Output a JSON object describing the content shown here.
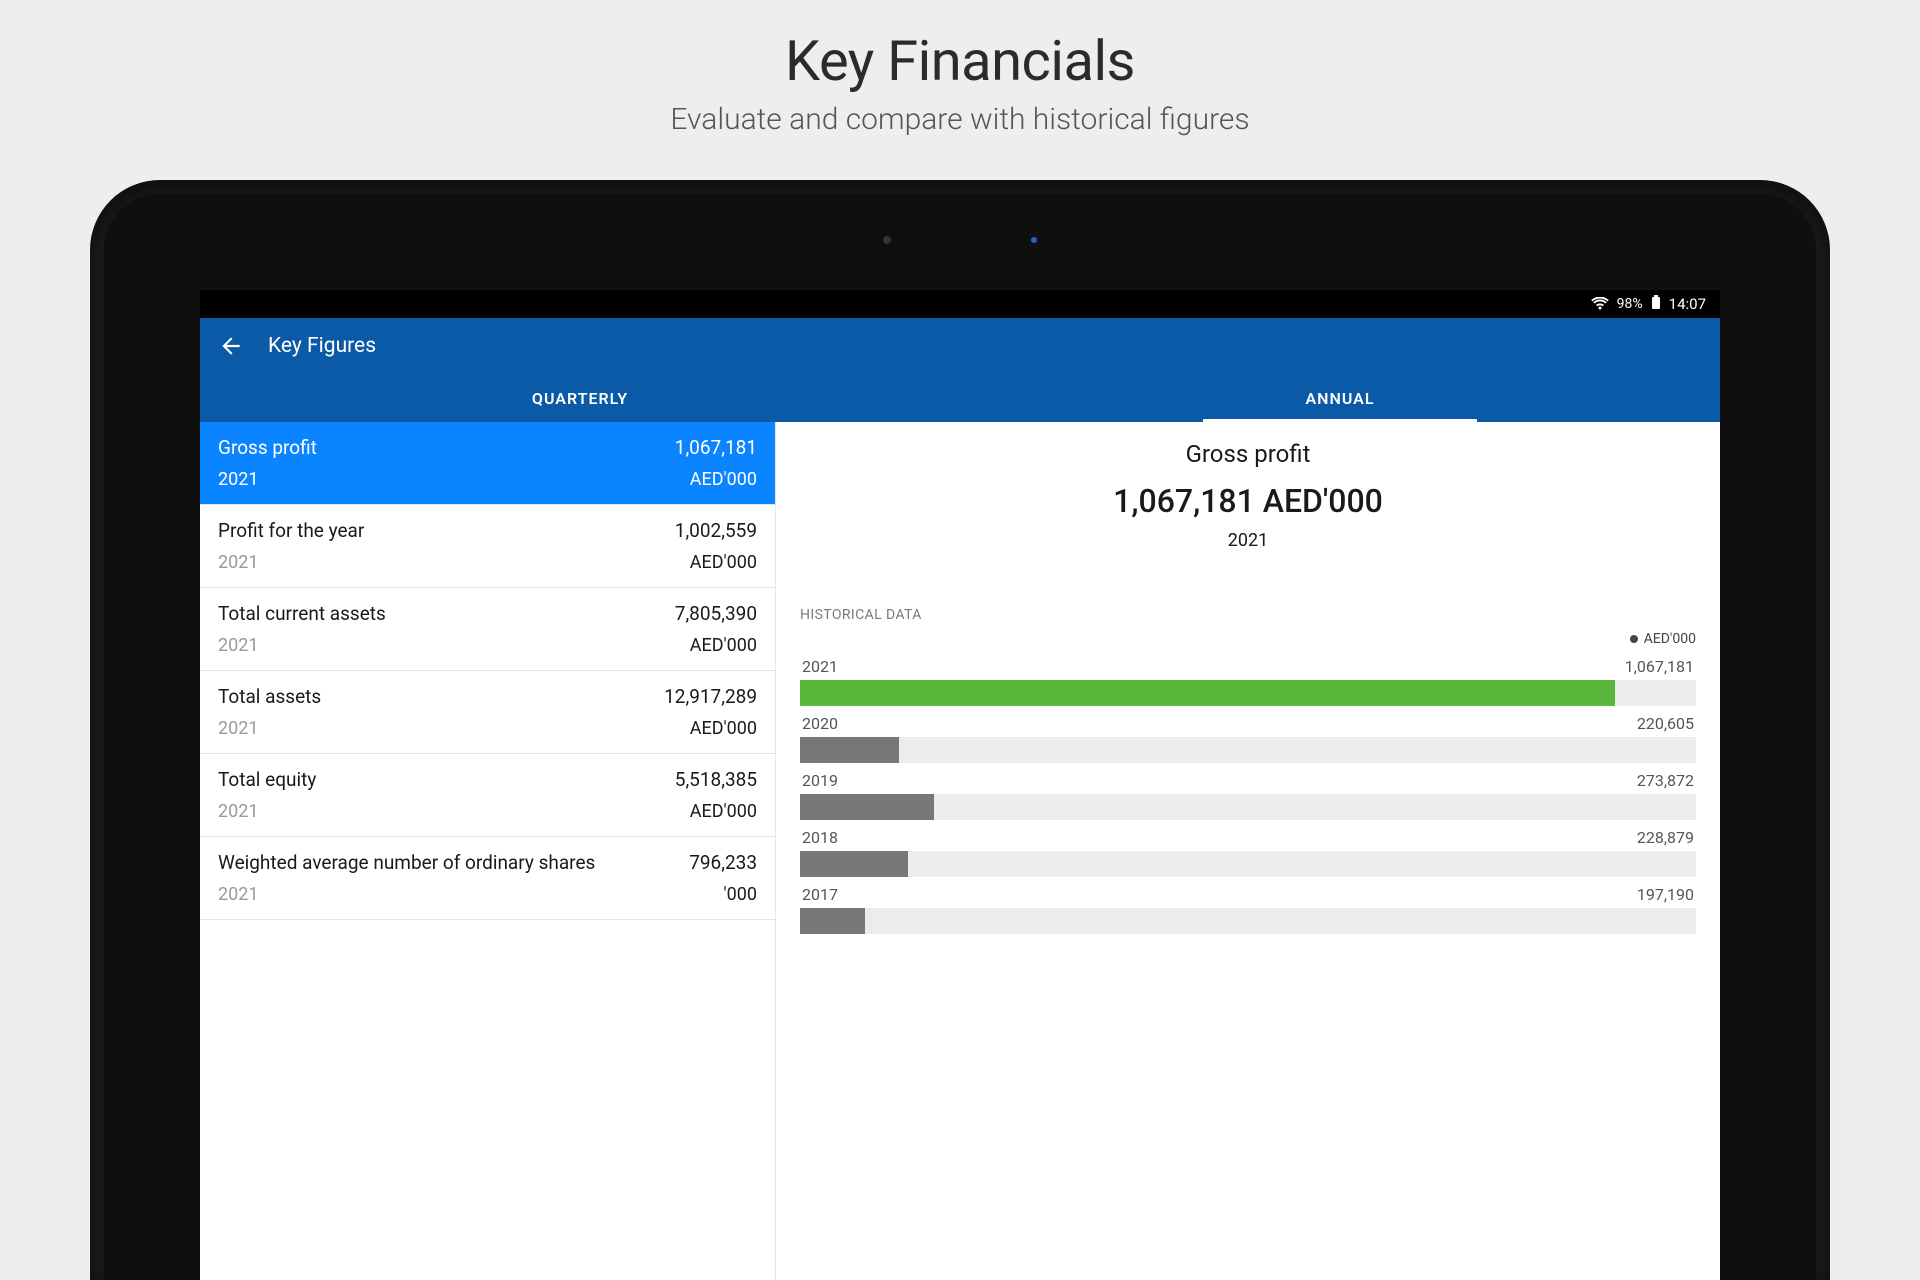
{
  "header": {
    "title": "Key Financials",
    "subtitle": "Evaluate and compare with historical figures"
  },
  "status_bar": {
    "battery_pct": "98%",
    "time": "14:07"
  },
  "app_bar": {
    "title": "Key Figures"
  },
  "tabs": {
    "quarterly": "QUARTERLY",
    "annual": "ANNUAL",
    "active": "annual"
  },
  "figures": [
    {
      "name": "Gross profit",
      "value": "1,067,181",
      "year": "2021",
      "unit": "AED'000",
      "selected": true
    },
    {
      "name": "Profit for the year",
      "value": "1,002,559",
      "year": "2021",
      "unit": "AED'000"
    },
    {
      "name": "Total current assets",
      "value": "7,805,390",
      "year": "2021",
      "unit": "AED'000"
    },
    {
      "name": "Total assets",
      "value": "12,917,289",
      "year": "2021",
      "unit": "AED'000"
    },
    {
      "name": "Total equity",
      "value": "5,518,385",
      "year": "2021",
      "unit": "AED'000"
    },
    {
      "name": "Weighted average number of ordinary shares",
      "value": "796,233",
      "year": "2021",
      "unit": "'000"
    }
  ],
  "detail": {
    "title": "Gross profit",
    "value": "1,067,181 AED'000",
    "year": "2021",
    "historical_label": "HISTORICAL DATA",
    "legend_unit": "AED'000",
    "chart": {
      "type": "bar",
      "track_color": "#ececec",
      "highlight_color": "#5bb73b",
      "bar_color": "#777777",
      "label_color": "#555555",
      "label_fontsize": 16,
      "max_value": 1067181,
      "bars": [
        {
          "year": "2021",
          "value": 1067181,
          "label": "1,067,181",
          "pct": 91,
          "highlight": true
        },
        {
          "year": "2020",
          "value": 220605,
          "label": "220,605",
          "pct": 11.0,
          "highlight": false
        },
        {
          "year": "2019",
          "value": 273872,
          "label": "273,872",
          "pct": 15.0,
          "highlight": false
        },
        {
          "year": "2018",
          "value": 228879,
          "label": "228,879",
          "pct": 12.0,
          "highlight": false
        },
        {
          "year": "2017",
          "value": 197190,
          "label": "197,190",
          "pct": 7.2,
          "highlight": false
        }
      ]
    }
  },
  "colors": {
    "page_bg": "#eeeeee",
    "app_bar": "#0b5aa8",
    "selected_row": "#0a84ff",
    "text_primary": "#1a1a1a",
    "text_muted": "#9a9a9a"
  }
}
